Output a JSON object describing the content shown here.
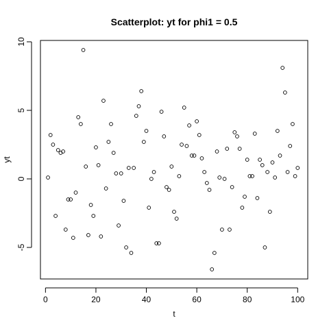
{
  "chart_data": {
    "type": "scatter",
    "title": "Scatterplot: yt for phi1 =  0.5",
    "xlabel": "t",
    "ylabel": "yt",
    "xlim": [
      -2,
      104
    ],
    "ylim": [
      -7.3,
      10.1
    ],
    "xticks": [
      0,
      20,
      40,
      60,
      80,
      100
    ],
    "yticks": [
      -5,
      0,
      5,
      10
    ],
    "xtick_labels": [
      "0",
      "20",
      "40",
      "60",
      "80",
      "100"
    ],
    "ytick_labels": [
      "-5",
      "0",
      "5",
      "10"
    ],
    "grid": false,
    "legend": "none",
    "marker": "open-circle",
    "color": "#000000",
    "x": [
      1,
      2,
      3,
      4,
      5,
      6,
      7,
      8,
      9,
      10,
      11,
      12,
      13,
      14,
      15,
      16,
      17,
      18,
      19,
      20,
      21,
      22,
      23,
      24,
      25,
      26,
      27,
      28,
      29,
      30,
      31,
      32,
      33,
      34,
      35,
      36,
      37,
      38,
      39,
      40,
      41,
      42,
      43,
      44,
      45,
      46,
      47,
      48,
      49,
      50,
      51,
      52,
      53,
      54,
      55,
      56,
      57,
      58,
      59,
      60,
      61,
      62,
      63,
      64,
      65,
      66,
      67,
      68,
      69,
      70,
      71,
      72,
      73,
      74,
      75,
      76,
      77,
      78,
      79,
      80,
      81,
      82,
      83,
      84,
      85,
      86,
      87,
      88,
      89,
      90,
      91,
      92,
      93,
      94,
      95,
      96,
      97,
      98,
      99,
      100
    ],
    "y": [
      0.1,
      3.2,
      2.5,
      -2.7,
      2.1,
      1.9,
      2.0,
      -3.7,
      -1.5,
      -1.5,
      -4.3,
      -1.0,
      4.5,
      4.0,
      9.4,
      0.9,
      -4.1,
      -1.9,
      -2.7,
      2.3,
      1.0,
      -4.2,
      5.7,
      -0.7,
      2.7,
      4.0,
      1.9,
      0.4,
      -3.4,
      0.4,
      -1.6,
      -5.0,
      0.8,
      -5.4,
      0.8,
      4.6,
      5.3,
      6.4,
      2.7,
      3.5,
      -2.1,
      0.0,
      0.5,
      -4.7,
      -4.7,
      4.9,
      3.1,
      -0.6,
      -0.8,
      0.9,
      -2.4,
      -2.9,
      0.2,
      2.5,
      5.2,
      2.4,
      3.9,
      1.7,
      1.7,
      4.2,
      3.2,
      1.5,
      0.5,
      -0.3,
      -0.8,
      -6.6,
      -5.4,
      2.0,
      0.1,
      -3.7,
      0.0,
      2.2,
      -3.7,
      -0.6,
      3.4,
      3.1,
      2.2,
      -2.1,
      -1.3,
      1.4,
      0.2,
      0.2,
      3.3,
      -1.4,
      1.4,
      1.0,
      -5.0,
      0.5,
      -2.4,
      1.2,
      0.1,
      3.5,
      1.7,
      8.1,
      6.3,
      0.5,
      2.4,
      4.0,
      0.2,
      0.8
    ]
  }
}
